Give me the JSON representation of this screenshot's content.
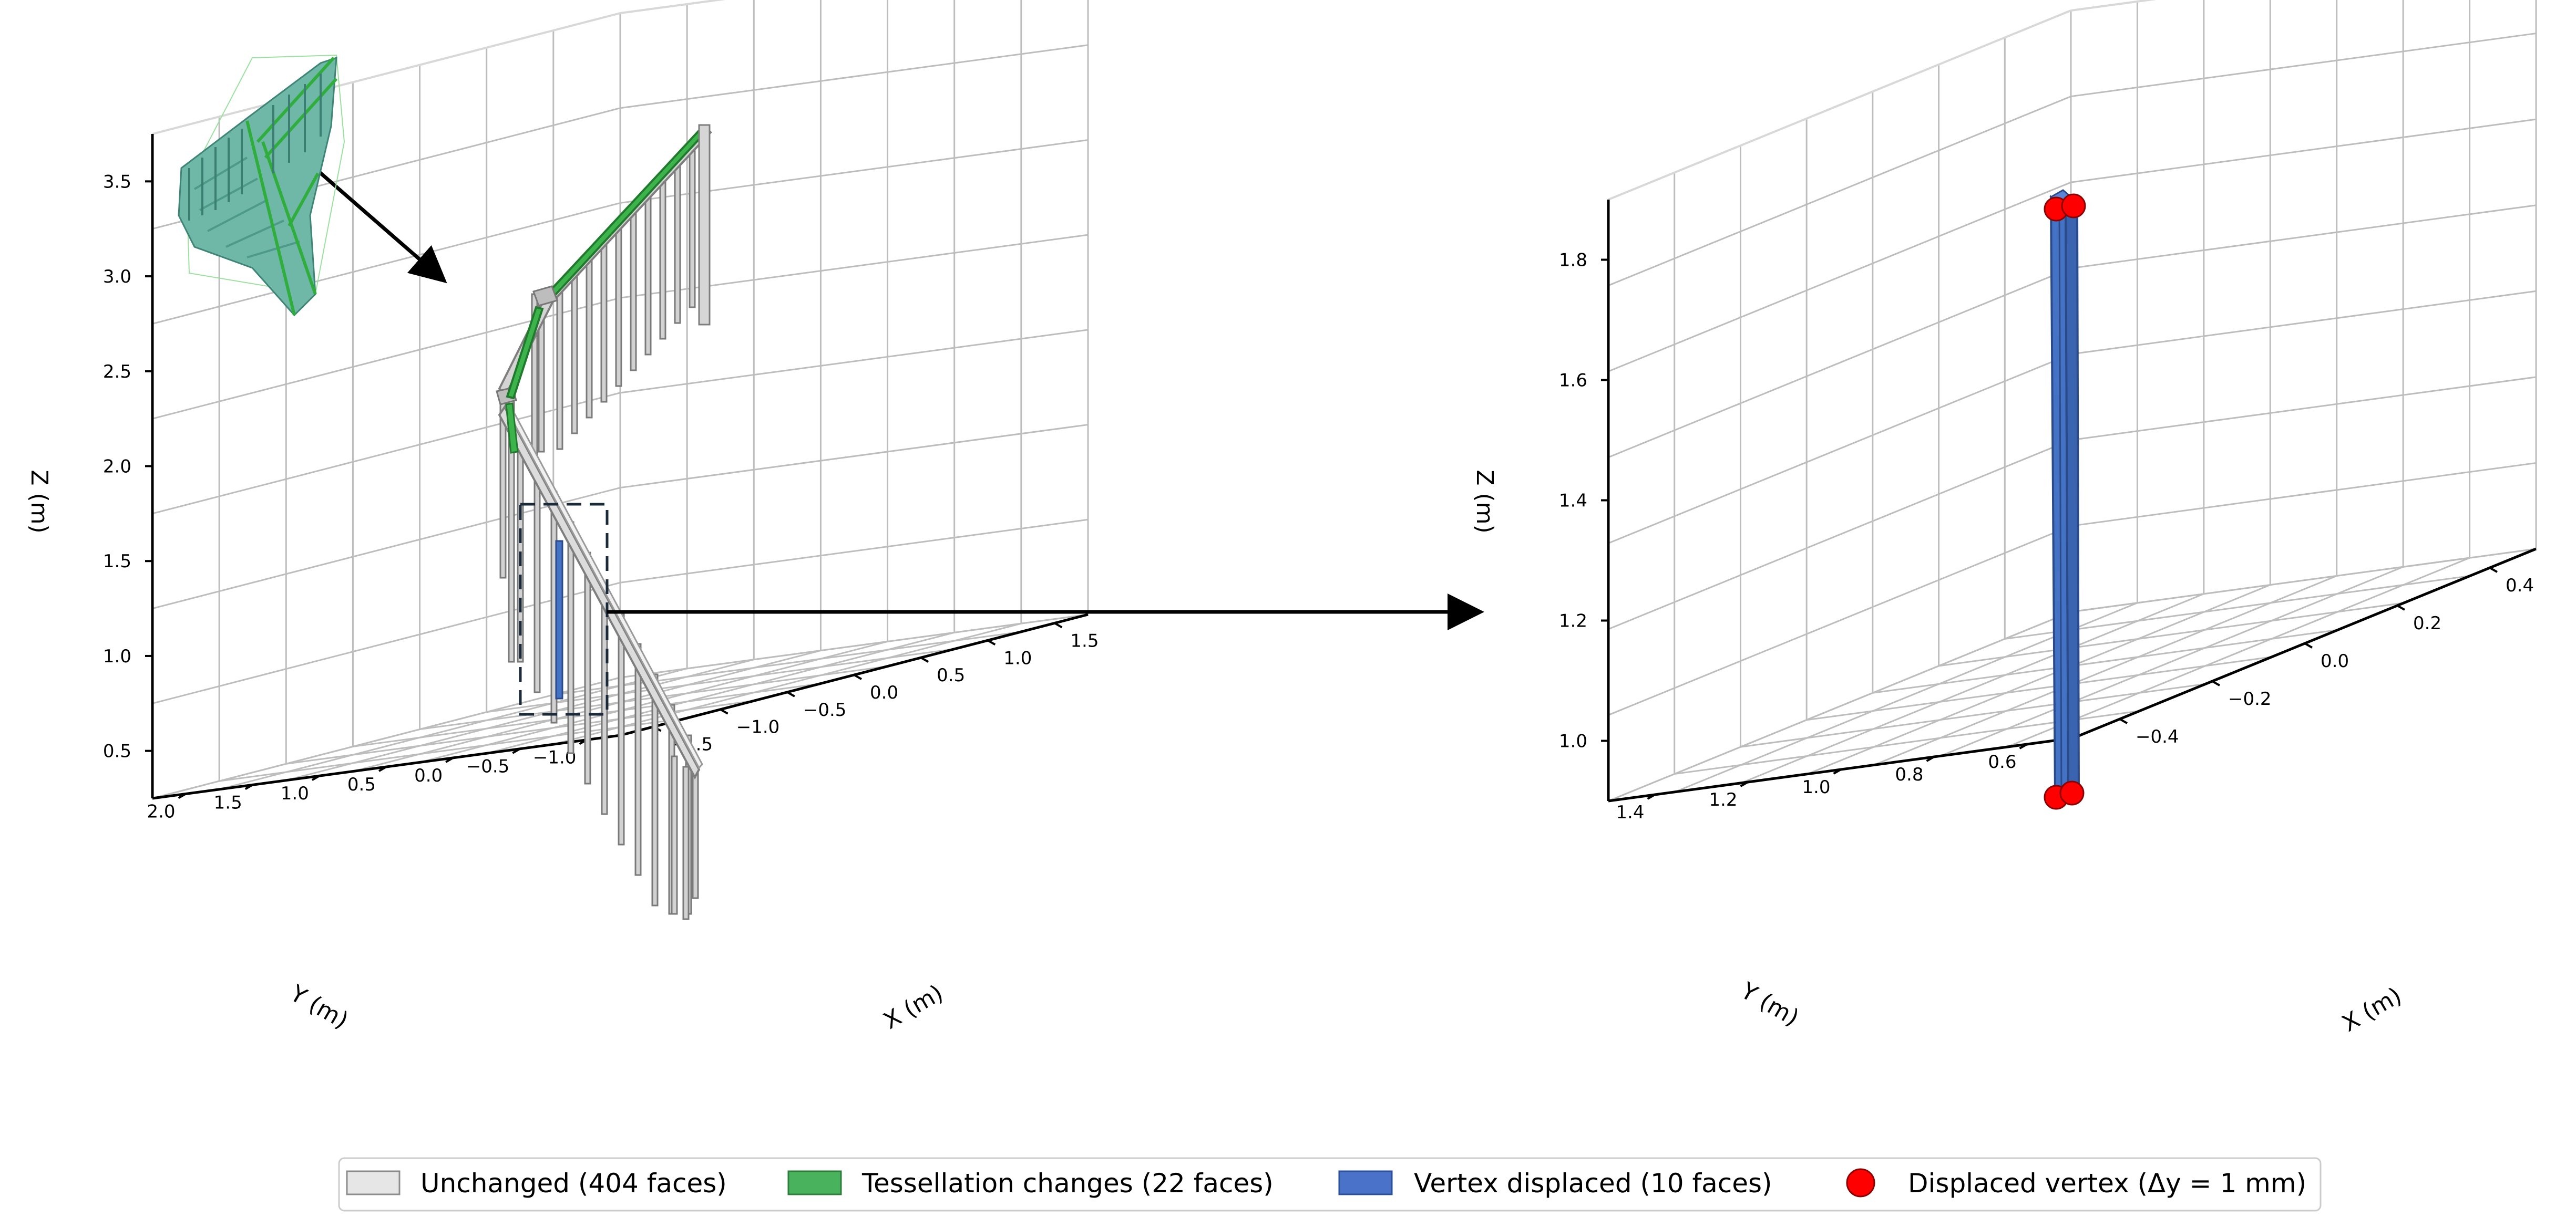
{
  "chart_data": [
    {
      "type": "scatter",
      "title": "",
      "xlabel": "X (m)",
      "ylabel": "Y (m)",
      "zlabel": "Z (m)",
      "xlim": [
        -1.6,
        1.8
      ],
      "ylim": [
        -1.0,
        2.3
      ],
      "zlim": [
        0.4,
        3.9
      ],
      "x_ticks": [
        "−1.5",
        "−1.0",
        "−0.5",
        "0.0",
        "0.5",
        "1.0",
        "1.5"
      ],
      "y_ticks": [
        "−1.0",
        "−0.5",
        "0.0",
        "0.5",
        "1.0",
        "1.5",
        "2.0"
      ],
      "z_ticks": [
        "0.5",
        "1.0",
        "1.5",
        "2.0",
        "2.5",
        "3.0",
        "3.5"
      ],
      "series": [
        {
          "name": "Unchanged (404 faces)",
          "color": "#d9d9d9"
        },
        {
          "name": "Tessellation changes (22 faces)",
          "color": "#3cb44b"
        },
        {
          "name": "Vertex displaced (10 faces)",
          "color": "#4472c4"
        }
      ]
    },
    {
      "type": "scatter",
      "title": "",
      "xlabel": "X (m)",
      "ylabel": "Y (m)",
      "zlabel": "Z (m)",
      "xlim": [
        -0.45,
        0.55
      ],
      "ylim": [
        0.55,
        1.55
      ],
      "zlim": [
        0.95,
        1.9
      ],
      "x_ticks": [
        "−0.4",
        "−0.2",
        "0.0",
        "0.2",
        "0.4"
      ],
      "y_ticks": [
        "0.6",
        "0.8",
        "1.0",
        "1.2",
        "1.4"
      ],
      "z_ticks": [
        "1.0",
        "1.2",
        "1.4",
        "1.6",
        "1.8"
      ],
      "series": [
        {
          "name": "Vertex displaced (10 faces)",
          "color": "#4472c4"
        },
        {
          "name": "Displaced vertex (Δy = 1 mm)",
          "color": "#ff0000"
        }
      ]
    }
  ],
  "legend": {
    "placement": "bottom-center",
    "items": [
      {
        "label": "Unchanged (404 faces)",
        "swatch": "rect",
        "fill": "#e6e6e6",
        "stroke": "#8c8c8c"
      },
      {
        "label": "Tessellation changes (22 faces)",
        "swatch": "rect",
        "fill": "#48b35c",
        "stroke": "#2e7d3c"
      },
      {
        "label": "Vertex displaced (10 faces)",
        "swatch": "rect",
        "fill": "#4a72c8",
        "stroke": "#2c4f99"
      },
      {
        "label": "Displaced vertex (Δy = 1 mm)",
        "swatch": "circle",
        "fill": "#ff0000",
        "stroke": "#8b0000"
      }
    ]
  },
  "colors": {
    "unchanged": "#d0d0d0",
    "unchanged_edge": "#8a8a8a",
    "tessellation": "#3cb44b",
    "displaced": "#4472c4",
    "vertex": "#ff0000",
    "grid": "#bdbdbd",
    "pane_edge": "#d8d8d8"
  }
}
